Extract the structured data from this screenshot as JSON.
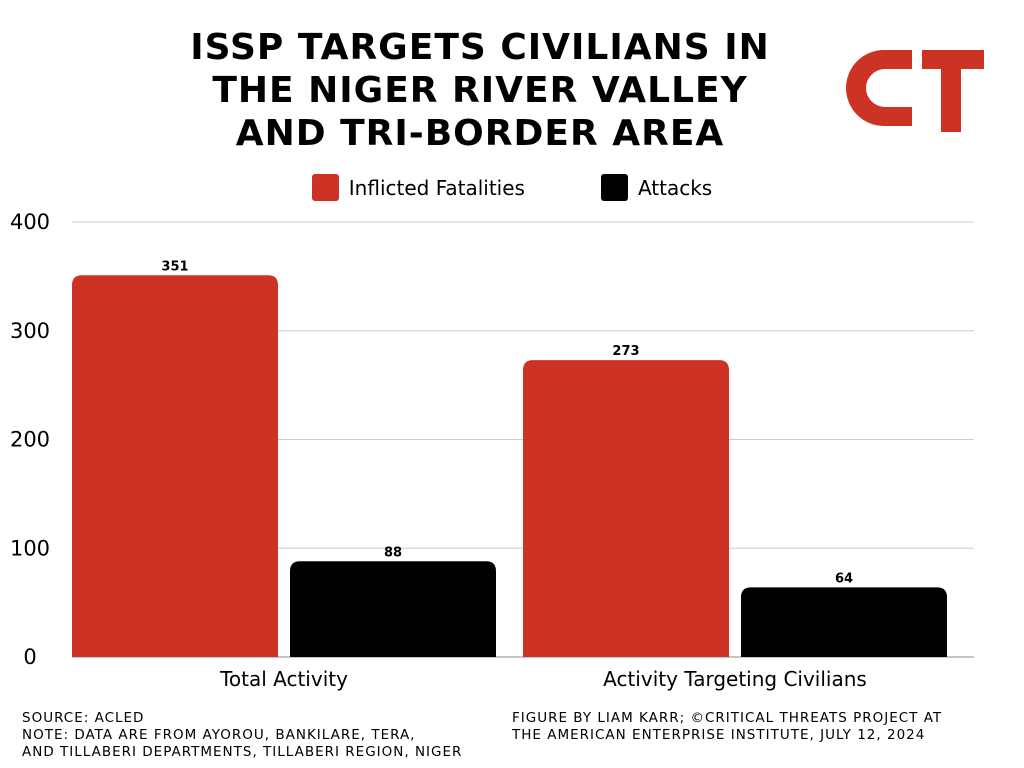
{
  "title": "ISSP TARGETS CIVILIANS IN\nTHE NIGER RIVER VALLEY\nAND TRI-BORDER AREA",
  "logo": {
    "text": "CT",
    "color": "#cc3325"
  },
  "colors": {
    "fatalities": "#cc3325",
    "attacks": "#000000",
    "grid": "#cccccc"
  },
  "chart_data": {
    "type": "bar",
    "categories": [
      "Total Activity",
      "Activity Targeting Civilians"
    ],
    "series": [
      {
        "name": "Inflicted Fatalities",
        "values": [
          351,
          273
        ]
      },
      {
        "name": "Attacks",
        "values": [
          88,
          64
        ]
      }
    ],
    "yticks": [
      "0",
      "100",
      "200",
      "300",
      "400"
    ],
    "ylim": [
      0,
      400
    ],
    "grid": true,
    "legend_position": "top-center",
    "data_labels": true
  },
  "footer": {
    "left": [
      "SOURCE: ACLED",
      "NOTE: DATA ARE FROM AYOROU, BANKILARE, TERA,",
      "AND TILLABERI DEPARTMENTS, TILLABERI REGION, NIGER"
    ],
    "right": [
      "FIGURE BY LIAM KARR; ©CRITICAL THREATS PROJECT AT",
      "THE AMERICAN ENTERPRISE INSTITUTE, JULY 12, 2024"
    ]
  }
}
